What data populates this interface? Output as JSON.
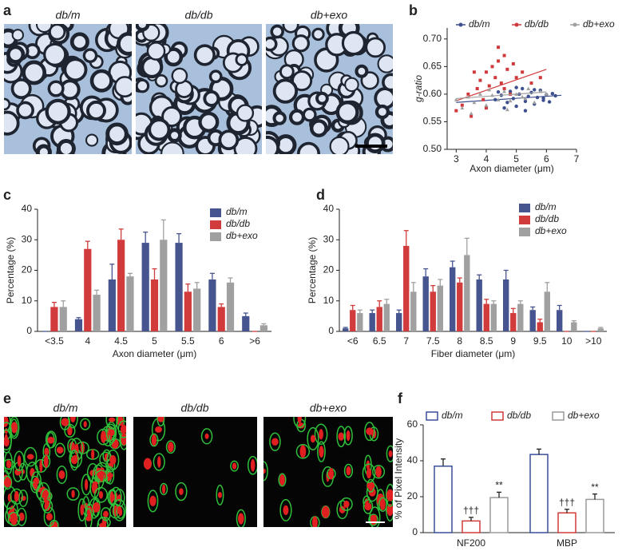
{
  "panel_labels": [
    "a",
    "b",
    "c",
    "d",
    "e",
    "f"
  ],
  "micrographs": {
    "titles": [
      "db/m",
      "db/db",
      "db+exo"
    ]
  },
  "fluorescence": {
    "titles": [
      "db/m",
      "db/db",
      "db+exo"
    ]
  },
  "chart_data": [
    {
      "type": "scatter",
      "xlabel": "Axon diameter (μm)",
      "ylabel": "g-ratio",
      "xlim": [
        2.7,
        7
      ],
      "ylim": [
        0.5,
        0.72
      ],
      "xticks": [
        3,
        4,
        5,
        6,
        7
      ],
      "yticks": [
        {
          "value": 0.5,
          "label": "0.50"
        },
        0.55,
        {
          "value": 0.6,
          "label": "0.60"
        },
        0.65,
        {
          "value": 0.7,
          "label": "0.70"
        }
      ],
      "series": [
        {
          "name": "db/m",
          "color": "#3d4f8e",
          "marker": "circle",
          "x": [
            4.3,
            4.5,
            4.7,
            4.8,
            4.9,
            5.0,
            5.1,
            5.2,
            5.3,
            5.4,
            5.5,
            5.6,
            5.7,
            5.8,
            5.9,
            6.0,
            6.1,
            6.2,
            4.6,
            5.0,
            5.3,
            5.6,
            5.9,
            6.3,
            4.4
          ],
          "y": [
            0.59,
            0.598,
            0.585,
            0.605,
            0.592,
            0.578,
            0.6,
            0.61,
            0.587,
            0.596,
            0.603,
            0.582,
            0.594,
            0.607,
            0.589,
            0.599,
            0.586,
            0.601,
            0.575,
            0.612,
            0.57,
            0.608,
            0.593,
            0.597,
            0.604
          ],
          "fit_x": [
            3.0,
            6.5
          ],
          "fit_y": [
            0.585,
            0.598
          ]
        },
        {
          "name": "db/db",
          "color": "#d0393c",
          "marker": "square",
          "x": [
            3.0,
            3.2,
            3.4,
            3.5,
            3.7,
            3.8,
            3.9,
            4.0,
            4.1,
            4.2,
            4.3,
            4.4,
            4.5,
            4.6,
            4.7,
            4.8,
            4.9,
            5.0,
            5.2,
            5.5,
            5.8,
            4.4,
            4.0,
            3.6,
            4.6
          ],
          "y": [
            0.57,
            0.58,
            0.6,
            0.56,
            0.61,
            0.625,
            0.59,
            0.64,
            0.615,
            0.65,
            0.63,
            0.66,
            0.62,
            0.67,
            0.645,
            0.6,
            0.655,
            0.63,
            0.64,
            0.62,
            0.63,
            0.685,
            0.575,
            0.64,
            0.61
          ],
          "fit_x": [
            3.0,
            6.0
          ],
          "fit_y": [
            0.588,
            0.645
          ]
        },
        {
          "name": "db+exo",
          "color": "#a0a0a0",
          "marker": "triangle",
          "x": [
            3.0,
            3.2,
            3.4,
            3.6,
            3.8,
            4.0,
            4.2,
            4.4,
            4.6,
            4.8,
            5.0,
            5.2,
            5.4,
            5.6,
            5.8,
            6.0,
            3.5,
            4.1,
            4.7,
            5.3
          ],
          "y": [
            0.59,
            0.575,
            0.595,
            0.585,
            0.6,
            0.58,
            0.598,
            0.59,
            0.605,
            0.588,
            0.6,
            0.595,
            0.61,
            0.585,
            0.605,
            0.6,
            0.565,
            0.608,
            0.572,
            0.592
          ],
          "fit_x": [
            3.0,
            6.0
          ],
          "fit_y": [
            0.592,
            0.604
          ]
        }
      ]
    },
    {
      "type": "bar",
      "xlabel": "Axon diameter (μm)",
      "ylabel": "Percentage (%)",
      "categories": [
        "<3.5",
        "4",
        "4.5",
        "5",
        "5.5",
        "6",
        ">6"
      ],
      "ylim": [
        0,
        40
      ],
      "yticks": [
        0,
        10,
        20,
        30,
        40
      ],
      "series": [
        {
          "name": "db/m",
          "color": "#46548f",
          "values": [
            0,
            4,
            17,
            29,
            29,
            17,
            5
          ],
          "errors": [
            0,
            0.5,
            5,
            3.5,
            3,
            2,
            1
          ]
        },
        {
          "name": "db/db",
          "color": "#d13b3b",
          "values": [
            8,
            27,
            30,
            17,
            13,
            8,
            0
          ],
          "errors": [
            1.5,
            2.5,
            3.5,
            3.5,
            2.5,
            1,
            0
          ]
        },
        {
          "name": "db+exo",
          "color": "#a0a0a0",
          "values": [
            8,
            12,
            18,
            30,
            14,
            16,
            2
          ],
          "errors": [
            2,
            1.5,
            1,
            6.5,
            2,
            1.5,
            0.5
          ]
        }
      ]
    },
    {
      "type": "bar",
      "xlabel": "Fiber diameter (μm)",
      "ylabel": "Percentage (%)",
      "categories": [
        "<6",
        "6.5",
        "7",
        "7.5",
        "8",
        "8.5",
        "9",
        "9.5",
        "10",
        ">10"
      ],
      "ylim": [
        0,
        40
      ],
      "yticks": [
        0,
        10,
        20,
        30,
        40
      ],
      "series": [
        {
          "name": "db/m",
          "color": "#46548f",
          "values": [
            1,
            6,
            6,
            18,
            21,
            17,
            17,
            7,
            7,
            0
          ],
          "errors": [
            0.3,
            1,
            1,
            2.5,
            2,
            1.5,
            3,
            1,
            1.5,
            0
          ]
        },
        {
          "name": "db/db",
          "color": "#d13b3b",
          "values": [
            7,
            8,
            28,
            13,
            16,
            9,
            6,
            3,
            0,
            0
          ],
          "errors": [
            1.5,
            2,
            5,
            2,
            1.5,
            1.5,
            1.5,
            1,
            0,
            0
          ]
        },
        {
          "name": "db+exo",
          "color": "#a0a0a0",
          "values": [
            6,
            9,
            13,
            15,
            25,
            9,
            9,
            13,
            3,
            1
          ],
          "errors": [
            1,
            1.5,
            3,
            2,
            5.5,
            1,
            1,
            3,
            0.5,
            0.3
          ]
        }
      ]
    },
    {
      "type": "outline-bar",
      "ylabel": "% of Pixel Intensity",
      "categories": [
        "NF200",
        "MBP"
      ],
      "ylim": [
        0,
        60
      ],
      "yticks": [
        0,
        20,
        40,
        60
      ],
      "series": [
        {
          "name": "db/m",
          "color": "#3a4f9a",
          "values": [
            37,
            43.5
          ],
          "errors": [
            4,
            3
          ]
        },
        {
          "name": "db/db",
          "color": "#d03a3a",
          "values": [
            6.5,
            11
          ],
          "errors": [
            2,
            2
          ],
          "annotation": "†††"
        },
        {
          "name": "db+exo",
          "color": "#9a9a9a",
          "values": [
            19.5,
            18.5
          ],
          "errors": [
            3,
            3
          ],
          "annotation": "**"
        }
      ]
    }
  ]
}
